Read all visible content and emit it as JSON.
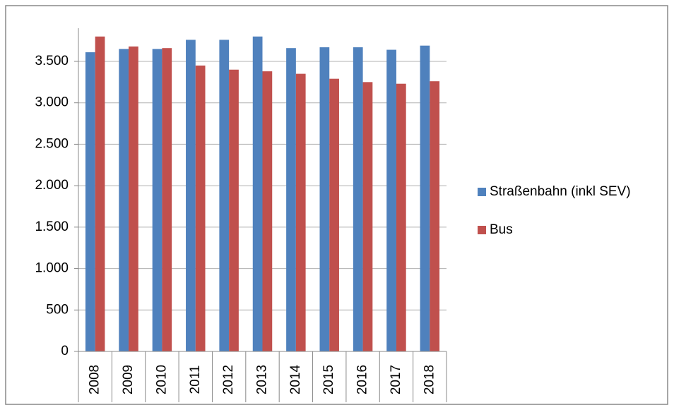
{
  "chart_data": {
    "type": "bar",
    "categories": [
      "2008",
      "2009",
      "2010",
      "2011",
      "2012",
      "2013",
      "2014",
      "2015",
      "2016",
      "2017",
      "2018"
    ],
    "series": [
      {
        "name": "Straßenbahn (inkl SEV)",
        "color": "#4f81bd",
        "values": [
          3610,
          3650,
          3650,
          3760,
          3760,
          3800,
          3660,
          3670,
          3670,
          3640,
          3690
        ]
      },
      {
        "name": "Bus",
        "color": "#c0504d",
        "values": [
          3800,
          3680,
          3660,
          3450,
          3400,
          3380,
          3350,
          3290,
          3250,
          3230,
          3260
        ]
      }
    ],
    "ylim": [
      0,
      3900
    ],
    "yticks": [
      0,
      500,
      {
        "value": 1000,
        "label": "1.000"
      },
      {
        "value": 1500,
        "label": "1.500"
      },
      {
        "value": 2000,
        "label": "2.000"
      },
      {
        "value": 2500,
        "label": "2.500"
      },
      {
        "value": 3000,
        "label": "3.000"
      },
      {
        "value": 3500,
        "label": "3.500"
      }
    ],
    "grid": true,
    "legend": "right"
  }
}
